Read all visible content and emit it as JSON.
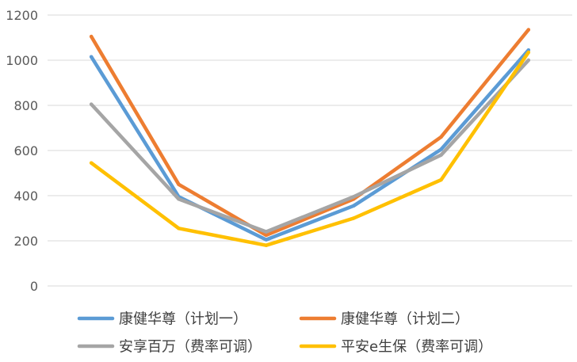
{
  "chart_data": {
    "type": "line",
    "title": "",
    "xlabel": "",
    "ylabel": "",
    "ylim": [
      0,
      1200
    ],
    "y_ticks": [
      0,
      200,
      400,
      600,
      800,
      1000,
      1200
    ],
    "grid": true,
    "legend_position": "bottom",
    "x": [
      1,
      2,
      3,
      4,
      5,
      6
    ],
    "series": [
      {
        "name": "康健华尊（计划一）",
        "color": "#5B9BD5",
        "values": [
          1015,
          395,
          205,
          355,
          605,
          1045
        ]
      },
      {
        "name": "康健华尊（计划二）",
        "color": "#ED7D31",
        "values": [
          1105,
          450,
          225,
          385,
          660,
          1135
        ]
      },
      {
        "name": "安享百万（费率可调）",
        "color": "#A5A5A5",
        "values": [
          805,
          385,
          240,
          395,
          580,
          1000
        ]
      },
      {
        "name": "平安e生保（费率可调）",
        "color": "#FFC000",
        "values": [
          545,
          255,
          180,
          300,
          470,
          1035
        ]
      }
    ]
  }
}
